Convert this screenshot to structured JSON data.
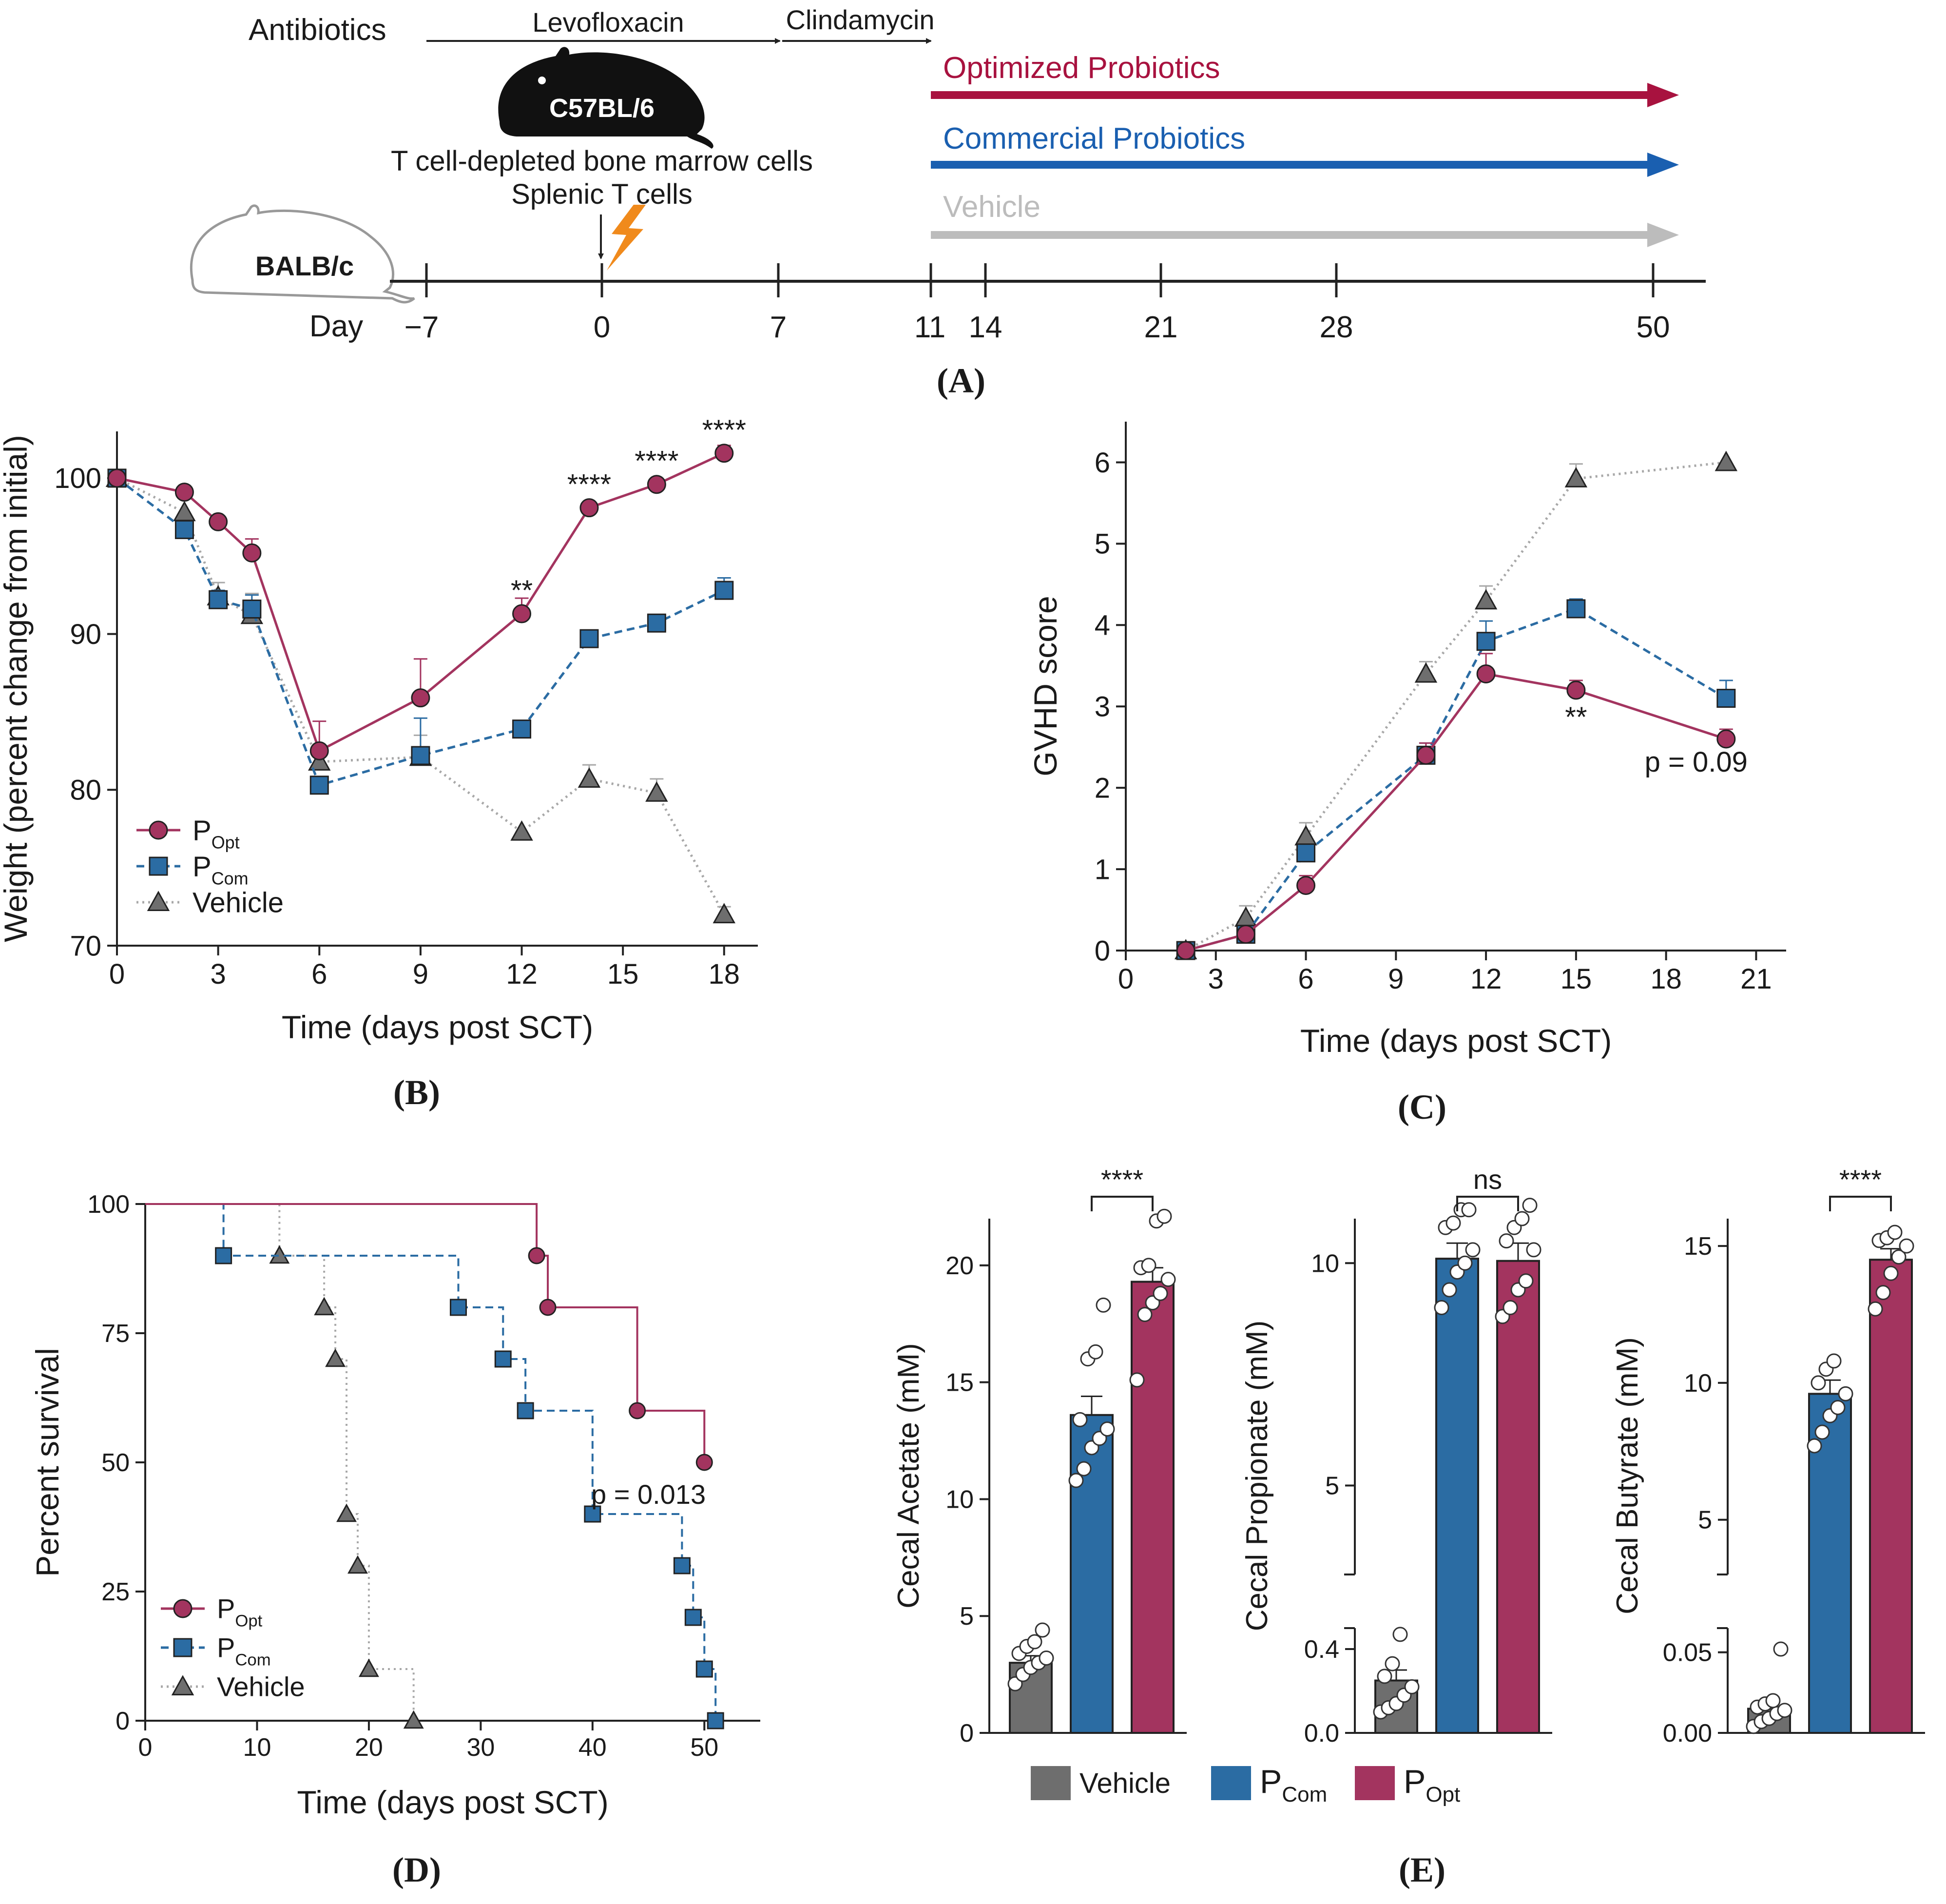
{
  "colors": {
    "opt": "#a3345f",
    "com": "#2b6ca3",
    "veh": "#6e6e6e",
    "veh_light": "#a8a8a8",
    "opt_arrow": "#a8123f",
    "com_arrow": "#1a5fb0",
    "veh_arrow": "#bcbcbc"
  },
  "panelA": {
    "label": "A",
    "antibiotics": "Antibiotics",
    "levofloxacin": "Levofloxacin",
    "clindamycin": "Clindamycin",
    "donor_strain": "C57BL/6",
    "recipient_strain": "BALB/c",
    "cells_line1": "T cell-depleted bone marrow cells",
    "cells_line2": "Splenic T cells",
    "arrow_opt": "Optimized Probiotics",
    "arrow_com": "Commercial Probiotics",
    "arrow_veh": "Vehicle",
    "day_label": "Day",
    "days": [
      "−7",
      "0",
      "7",
      "11",
      "14",
      "21",
      "28",
      "50"
    ]
  },
  "legend": {
    "opt_base": "P",
    "opt_sub": "Opt",
    "com_base": "P",
    "com_sub": "Com",
    "veh": "Vehicle"
  },
  "chart_data": [
    {
      "id": "B",
      "type": "line",
      "label": "B",
      "xlabel": "Time (days post SCT)",
      "ylabel": "Weight (percent change from initial)",
      "xlim": [
        0,
        19
      ],
      "ylim": [
        70,
        103
      ],
      "xticks": [
        0,
        3,
        6,
        9,
        12,
        15,
        18
      ],
      "yticks": [
        70,
        80,
        90,
        100
      ],
      "series": [
        {
          "name": "POpt",
          "x": [
            0,
            2,
            3,
            4,
            6,
            9,
            12,
            14,
            16,
            18
          ],
          "y": [
            100,
            99.1,
            97.2,
            95.2,
            82.5,
            85.9,
            91.3,
            98.1,
            99.6,
            101.6
          ],
          "err": [
            0,
            0,
            0,
            0.9,
            1.9,
            2.5,
            1.0,
            0,
            0,
            0.5
          ]
        },
        {
          "name": "PCom",
          "x": [
            0,
            2,
            3,
            4,
            6,
            9,
            12,
            14,
            16,
            18
          ],
          "y": [
            100,
            96.7,
            92.2,
            91.6,
            80.3,
            82.2,
            83.9,
            89.7,
            90.7,
            92.8
          ],
          "err": [
            0,
            0,
            0.6,
            0.9,
            0,
            2.4,
            0,
            0,
            0.5,
            0.8
          ]
        },
        {
          "name": "Vehicle",
          "x": [
            0,
            2,
            3,
            4,
            6,
            9,
            12,
            14,
            16,
            18
          ],
          "y": [
            100,
            97.8,
            92.4,
            91.2,
            81.8,
            82.1,
            77.3,
            80.7,
            79.8,
            72.0
          ],
          "err": [
            0,
            0,
            0.9,
            1.4,
            0,
            1.4,
            0,
            0.9,
            0.9,
            0.5
          ]
        }
      ],
      "annotations": [
        {
          "x": 12,
          "y": 91.3,
          "text": "**"
        },
        {
          "x": 14,
          "y": 98.1,
          "text": "****"
        },
        {
          "x": 16,
          "y": 99.6,
          "text": "****"
        },
        {
          "x": 18,
          "y": 101.6,
          "text": "****"
        }
      ]
    },
    {
      "id": "C",
      "type": "line",
      "label": "C",
      "xlabel": "Time (days post SCT)",
      "ylabel": "GVHD score",
      "xlim": [
        0,
        22
      ],
      "ylim": [
        0,
        6.5
      ],
      "xticks": [
        0,
        3,
        6,
        9,
        12,
        15,
        18,
        21
      ],
      "yticks": [
        0,
        1,
        2,
        3,
        4,
        5,
        6
      ],
      "series": [
        {
          "name": "POpt",
          "x": [
            2,
            4,
            6,
            10,
            12,
            15,
            20
          ],
          "y": [
            0,
            0.2,
            0.8,
            2.4,
            3.4,
            3.2,
            2.6
          ],
          "err": [
            0,
            0,
            0.12,
            0.15,
            0.25,
            0.12,
            0.12
          ]
        },
        {
          "name": "PCom",
          "x": [
            2,
            4,
            6,
            10,
            12,
            15,
            20
          ],
          "y": [
            0,
            0.2,
            1.2,
            2.4,
            3.8,
            4.2,
            3.1
          ],
          "err": [
            0,
            0,
            0,
            0.15,
            0.25,
            0.12,
            0.22
          ]
        },
        {
          "name": "Vehicle",
          "x": [
            2,
            4,
            6,
            10,
            12,
            15,
            20
          ],
          "y": [
            0,
            0.4,
            1.4,
            3.4,
            4.3,
            5.8,
            6.0
          ],
          "err": [
            0,
            0.15,
            0.17,
            0.15,
            0.18,
            0.18,
            0
          ]
        }
      ],
      "annotations": [
        {
          "x": 15,
          "y": 2.75,
          "text": "**"
        },
        {
          "x": 19,
          "y": 2.2,
          "text": "p = 0.09"
        }
      ]
    },
    {
      "id": "D",
      "type": "line",
      "label": "D",
      "xlabel": "Time (days post SCT)",
      "ylabel": "Percent survival",
      "xlim": [
        0,
        55
      ],
      "ylim": [
        0,
        100
      ],
      "xticks": [
        0,
        10,
        20,
        30,
        40,
        50
      ],
      "yticks": [
        0,
        25,
        50,
        75,
        100
      ],
      "series": [
        {
          "name": "POpt",
          "x": [
            0,
            35,
            36,
            44,
            50
          ],
          "y": [
            100,
            90,
            80,
            60,
            50
          ]
        },
        {
          "name": "PCom",
          "x": [
            0,
            7,
            28,
            32,
            34,
            40,
            48,
            49,
            50,
            51
          ],
          "y": [
            100,
            90,
            80,
            70,
            60,
            40,
            30,
            20,
            10,
            0
          ]
        },
        {
          "name": "Vehicle",
          "x": [
            0,
            12,
            16,
            17,
            18,
            19,
            20,
            24
          ],
          "y": [
            100,
            90,
            80,
            70,
            40,
            30,
            10,
            0
          ]
        }
      ],
      "annotations": [
        {
          "x": 45,
          "y": 42,
          "text": "p = 0.013"
        }
      ]
    },
    {
      "id": "E1",
      "type": "bar",
      "label": "E",
      "ylabel": "Cecal Acetate (mM)",
      "ylim": [
        0,
        22
      ],
      "yticks": [
        0,
        5,
        10,
        15,
        20
      ],
      "categories": [
        "Vehicle",
        "PCom",
        "POpt"
      ],
      "values": [
        3.0,
        13.6,
        19.3
      ],
      "err": [
        0.3,
        0.8,
        0.6
      ],
      "points": [
        [
          2.1,
          2.5,
          2.8,
          3.0,
          3.2,
          3.4,
          3.7,
          3.9,
          4.4
        ],
        [
          10.8,
          11.3,
          12.2,
          12.6,
          13.0,
          13.4,
          16.0,
          16.3,
          18.3
        ],
        [
          15.1,
          17.9,
          18.4,
          18.8,
          19.4,
          19.9,
          20.0,
          21.9,
          22.1
        ]
      ],
      "significance": "****"
    },
    {
      "id": "E2",
      "type": "bar",
      "ylabel": "Cecal Propionate (mM)",
      "broken_axis": true,
      "lower_ylim": [
        0,
        0.5
      ],
      "upper_ylim": [
        3,
        11
      ],
      "yticks_lower": [
        0.0,
        0.4
      ],
      "yticks_upper": [
        5,
        10
      ],
      "categories": [
        "Vehicle",
        "PCom",
        "POpt"
      ],
      "values": [
        0.25,
        10.1,
        10.05
      ],
      "err": [
        0.05,
        0.35,
        0.4
      ],
      "points": [
        [
          0.1,
          0.12,
          0.14,
          0.18,
          0.22,
          0.27,
          0.33,
          0.47
        ],
        [
          9.0,
          9.4,
          9.8,
          10.0,
          10.3,
          10.8,
          10.9,
          11.2,
          11.2
        ],
        [
          8.8,
          9.0,
          9.4,
          9.6,
          10.3,
          10.5,
          10.8,
          11.0,
          11.3
        ]
      ],
      "significance": "ns"
    },
    {
      "id": "E3",
      "type": "bar",
      "ylabel": "Cecal Butyrate (mM)",
      "broken_axis": true,
      "lower_ylim": [
        0,
        0.065
      ],
      "upper_ylim": [
        3,
        16
      ],
      "yticks_lower": [
        0.0,
        0.05
      ],
      "yticks_upper": [
        5,
        10,
        15
      ],
      "categories": [
        "Vehicle",
        "PCom",
        "POpt"
      ],
      "values": [
        0.015,
        9.6,
        14.5
      ],
      "err": [
        0.004,
        0.5,
        0.4
      ],
      "points": [
        [
          0.004,
          0.007,
          0.009,
          0.012,
          0.014,
          0.016,
          0.018,
          0.02,
          0.052
        ],
        [
          7.7,
          8.2,
          8.8,
          9.1,
          9.6,
          10.0,
          10.5,
          10.8
        ],
        [
          12.7,
          13.3,
          14.0,
          14.6,
          15.0,
          15.2,
          15.3,
          15.5
        ]
      ],
      "significance": "****"
    }
  ],
  "legendE": {
    "veh": "Vehicle",
    "com_base": "P",
    "com_sub": "Com",
    "opt_base": "P",
    "opt_sub": "Opt"
  }
}
